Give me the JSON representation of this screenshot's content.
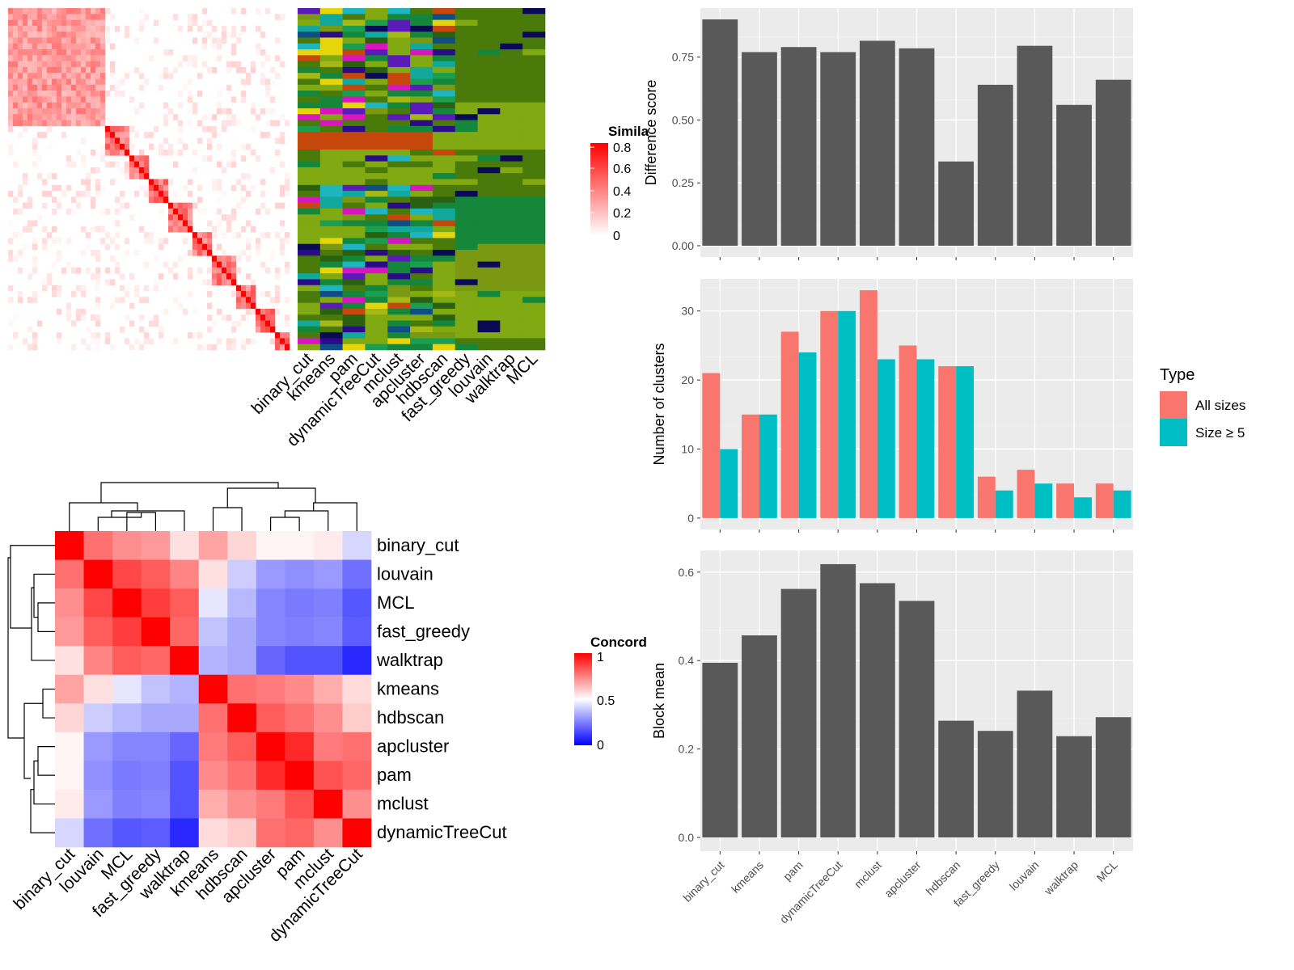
{
  "colors": {
    "panel_bg": "#ebebeb",
    "grid_major": "#ffffff",
    "bar": "#595959",
    "all_sizes": "#f8766d",
    "size_ge5": "#00bfc4",
    "heat_red": "#ff0000",
    "heat_blue": "#0000ff"
  },
  "similarity_heatmap": {
    "legend_title": "Simila",
    "legend_ticks": [
      "0.8",
      "0.6",
      "0.4",
      "0.2",
      "0"
    ],
    "column_labels": [
      "binary_cut",
      "kmeans",
      "pam",
      "dynamicTreeCut",
      "mclust",
      "apcluster",
      "hdbscan",
      "fast_greedy",
      "louvain",
      "walktrap",
      "MCL"
    ]
  },
  "concordance_heatmap": {
    "legend_title": "Concord",
    "legend_ticks": [
      "1",
      "0.5",
      "0"
    ],
    "row_labels": [
      "binary_cut",
      "louvain",
      "MCL",
      "fast_greedy",
      "walktrap",
      "kmeans",
      "hdbscan",
      "apcluster",
      "pam",
      "mclust",
      "dynamicTreeCut"
    ],
    "col_labels": [
      "binary_cut",
      "louvain",
      "MCL",
      "fast_greedy",
      "walktrap",
      "kmeans",
      "hdbscan",
      "apcluster",
      "pam",
      "mclust",
      "dynamicTreeCut"
    ]
  },
  "chart_data": [
    {
      "type": "bar",
      "ylabel": "Difference score",
      "categories": [
        "binary_cut",
        "kmeans",
        "pam",
        "dynamicTreeCut",
        "mclust",
        "apcluster",
        "hdbscan",
        "fast_greedy",
        "louvain",
        "walktrap",
        "MCL"
      ],
      "values": [
        0.9,
        0.77,
        0.79,
        0.77,
        0.815,
        0.785,
        0.335,
        0.64,
        0.795,
        0.56,
        0.66
      ],
      "ylim": [
        0,
        0.9
      ],
      "yticks": [
        "0.00",
        "0.25",
        "0.50",
        "0.75"
      ]
    },
    {
      "type": "bar",
      "ylabel": "Number of clusters",
      "categories": [
        "binary_cut",
        "kmeans",
        "pam",
        "dynamicTreeCut",
        "mclust",
        "apcluster",
        "hdbscan",
        "fast_greedy",
        "louvain",
        "walktrap",
        "MCL"
      ],
      "series": [
        {
          "name": "All sizes",
          "values": [
            21,
            15,
            27,
            30,
            33,
            25,
            22,
            6,
            7,
            5,
            5
          ]
        },
        {
          "name": "Size ≥ 5",
          "values": [
            10,
            15,
            24,
            30,
            23,
            23,
            22,
            4,
            5,
            3,
            4
          ]
        }
      ],
      "yticks": [
        "0",
        "10",
        "20",
        "30"
      ],
      "legend_title": "Type",
      "legend_position": "right"
    },
    {
      "type": "bar",
      "ylabel": "Block mean",
      "categories": [
        "binary_cut",
        "kmeans",
        "pam",
        "dynamicTreeCut",
        "mclust",
        "apcluster",
        "hdbscan",
        "fast_greedy",
        "louvain",
        "walktrap",
        "MCL"
      ],
      "values": [
        0.395,
        0.457,
        0.562,
        0.618,
        0.575,
        0.535,
        0.264,
        0.241,
        0.332,
        0.229,
        0.272
      ],
      "yticks": [
        "0.0",
        "0.2",
        "0.4",
        "0.6"
      ]
    },
    {
      "type": "heatmap",
      "title": "",
      "rows": [
        "binary_cut",
        "louvain",
        "MCL",
        "fast_greedy",
        "walktrap",
        "kmeans",
        "hdbscan",
        "apcluster",
        "pam",
        "mclust",
        "dynamicTreeCut"
      ],
      "cols": [
        "binary_cut",
        "louvain",
        "MCL",
        "fast_greedy",
        "walktrap",
        "kmeans",
        "hdbscan",
        "apcluster",
        "pam",
        "mclust",
        "dynamicTreeCut"
      ],
      "values": [
        [
          1.0,
          0.78,
          0.72,
          0.7,
          0.56,
          0.68,
          0.58,
          0.52,
          0.52,
          0.54,
          0.42
        ],
        [
          0.78,
          1.0,
          0.86,
          0.82,
          0.74,
          0.56,
          0.4,
          0.3,
          0.28,
          0.3,
          0.22
        ],
        [
          0.72,
          0.86,
          1.0,
          0.88,
          0.82,
          0.45,
          0.36,
          0.26,
          0.24,
          0.25,
          0.17
        ],
        [
          0.7,
          0.82,
          0.88,
          1.0,
          0.8,
          0.38,
          0.33,
          0.26,
          0.25,
          0.26,
          0.18
        ],
        [
          0.56,
          0.74,
          0.82,
          0.8,
          1.0,
          0.35,
          0.33,
          0.2,
          0.16,
          0.16,
          0.08
        ],
        [
          0.68,
          0.56,
          0.45,
          0.38,
          0.35,
          1.0,
          0.78,
          0.76,
          0.73,
          0.66,
          0.57
        ],
        [
          0.58,
          0.4,
          0.36,
          0.33,
          0.33,
          0.78,
          1.0,
          0.82,
          0.78,
          0.72,
          0.6
        ],
        [
          0.52,
          0.3,
          0.26,
          0.26,
          0.2,
          0.76,
          0.82,
          1.0,
          0.92,
          0.76,
          0.78
        ],
        [
          0.52,
          0.28,
          0.24,
          0.25,
          0.16,
          0.73,
          0.78,
          0.92,
          1.0,
          0.84,
          0.8
        ],
        [
          0.54,
          0.3,
          0.25,
          0.26,
          0.16,
          0.66,
          0.72,
          0.76,
          0.84,
          1.0,
          0.72
        ],
        [
          0.42,
          0.22,
          0.17,
          0.18,
          0.08,
          0.57,
          0.6,
          0.78,
          0.8,
          0.72,
          1.0
        ]
      ]
    }
  ]
}
